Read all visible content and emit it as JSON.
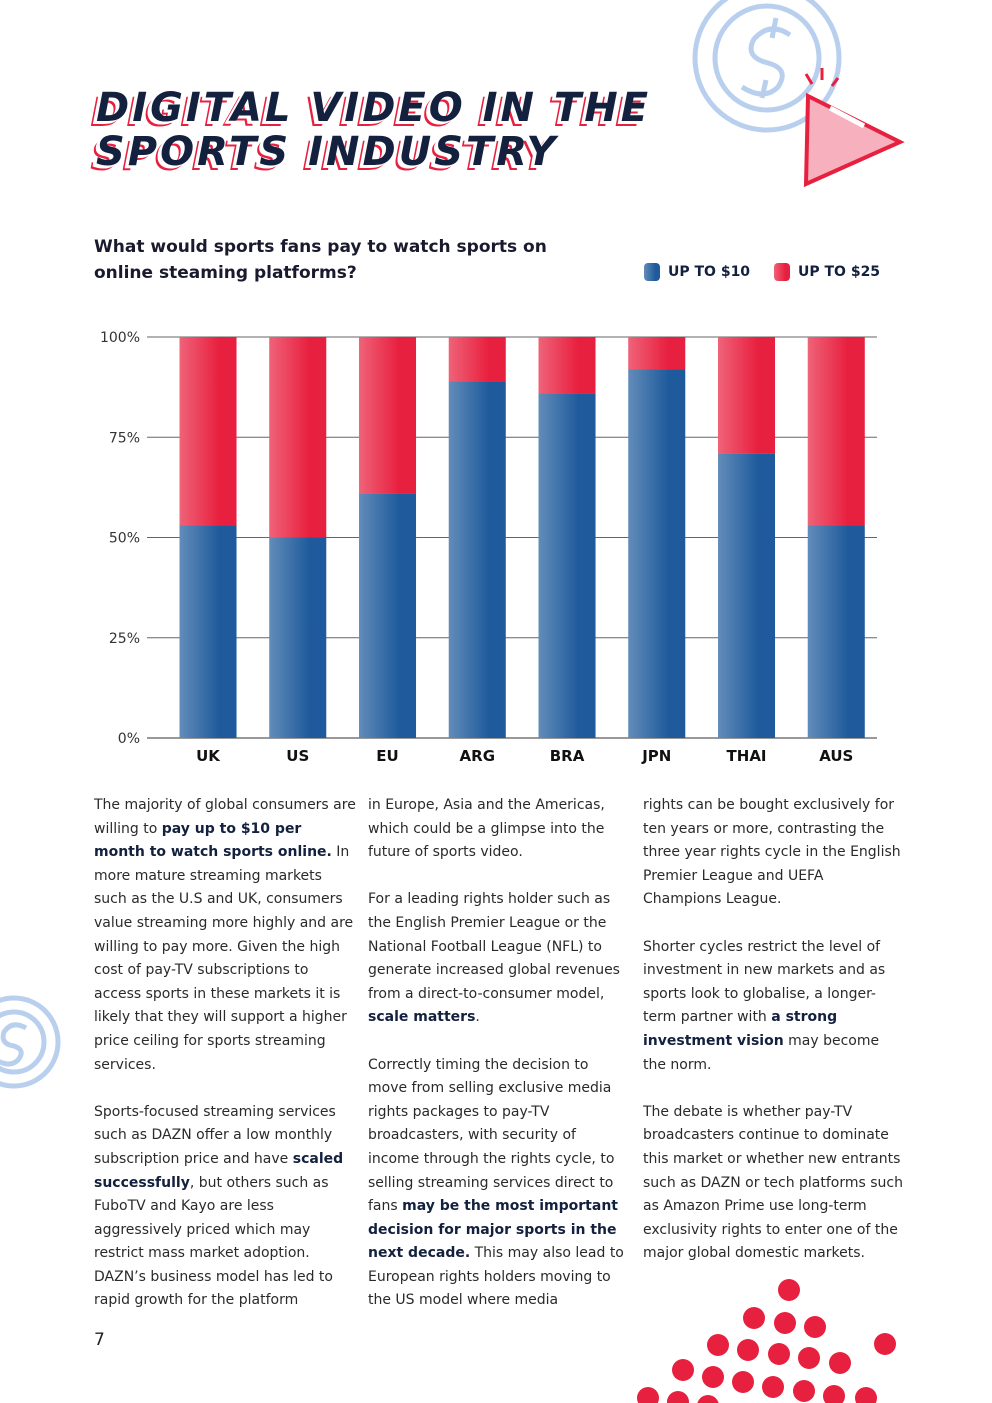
{
  "header": {
    "title_lines": [
      "DIGITAL VIDEO IN THE",
      "SPORTS INDUSTRY"
    ]
  },
  "chart_data": {
    "type": "stacked_bar",
    "title": "What would sports fans pay to watch sports on online steaming platforms?",
    "categories": [
      "UK",
      "US",
      "EU",
      "ARG",
      "BRA",
      "JPN",
      "THAI",
      "AUS"
    ],
    "series": [
      {
        "name": "UP TO $10",
        "color": "#1f5b9c",
        "values": [
          53,
          50,
          61,
          89,
          86,
          92,
          71,
          53
        ]
      },
      {
        "name": "UP TO $25",
        "color": "#e8203f",
        "values": [
          47,
          50,
          39,
          11,
          14,
          8,
          29,
          47
        ]
      }
    ],
    "ylim": [
      0,
      100
    ],
    "yticks": [
      {
        "value": 0,
        "label": "0%"
      },
      {
        "value": 25,
        "label": "25%"
      },
      {
        "value": 50,
        "label": "50%"
      },
      {
        "value": 75,
        "label": "75%"
      },
      {
        "value": 100,
        "label": "100%"
      }
    ],
    "grid": true
  },
  "body": {
    "columns": [
      [
        [
          {
            "text": "The majority of global consumers are willing to "
          },
          {
            "text": "pay up to $10 per month to watch sports online.",
            "strong": true
          },
          {
            "text": " In more mature streaming markets such as the U.S and UK, consumers value streaming more highly and are willing to pay more. Given the high cost of pay-TV subscriptions to access sports in these markets it is likely that they will support a higher price ceiling for sports streaming services."
          }
        ],
        [
          {
            "text": "Sports-focused streaming services such as DAZN offer a low monthly subscription price and have "
          },
          {
            "text": "scaled successfully",
            "strong": true
          },
          {
            "text": ", but others such as FuboTV and Kayo are less aggressively priced which may restrict mass market adoption. DAZN’s business model has led to rapid growth for the platform"
          }
        ]
      ],
      [
        [
          {
            "text": "in Europe, Asia and the Americas, which could be a glimpse into the future of sports video."
          }
        ],
        [
          {
            "text": "For a leading rights holder such as the English Premier League or the National Football League (NFL) to generate increased global revenues from a direct-to-consumer model, "
          },
          {
            "text": "scale matters",
            "strong": true
          },
          {
            "text": "."
          }
        ],
        [
          {
            "text": "Correctly timing the decision to move from selling exclusive media rights packages to pay-TV broadcasters, with security of income through the rights cycle, to selling streaming services direct to fans "
          },
          {
            "text": "may be the most important decision for major sports in the next decade.",
            "strong": true
          },
          {
            "text": " This may also lead to European rights holders moving to the US model where media"
          }
        ]
      ],
      [
        [
          {
            "text": "rights can be bought exclusively for ten years or more, contrasting the three year rights cycle in the English Premier League and UEFA Champions League."
          }
        ],
        [
          {
            "text": "Shorter cycles restrict the level of investment in new markets and as sports look to globalise, a longer-term partner with "
          },
          {
            "text": "a strong investment vision",
            "strong": true
          },
          {
            "text": " may become the norm."
          }
        ],
        [
          {
            "text": "The debate is whether pay-TV broadcasters continue to dominate this market or whether new entrants such as DAZN or tech platforms such as Amazon Prime use long-term exclusivity rights to enter one of the major global domestic markets."
          }
        ]
      ]
    ]
  },
  "footer": {
    "page_number": "7"
  }
}
